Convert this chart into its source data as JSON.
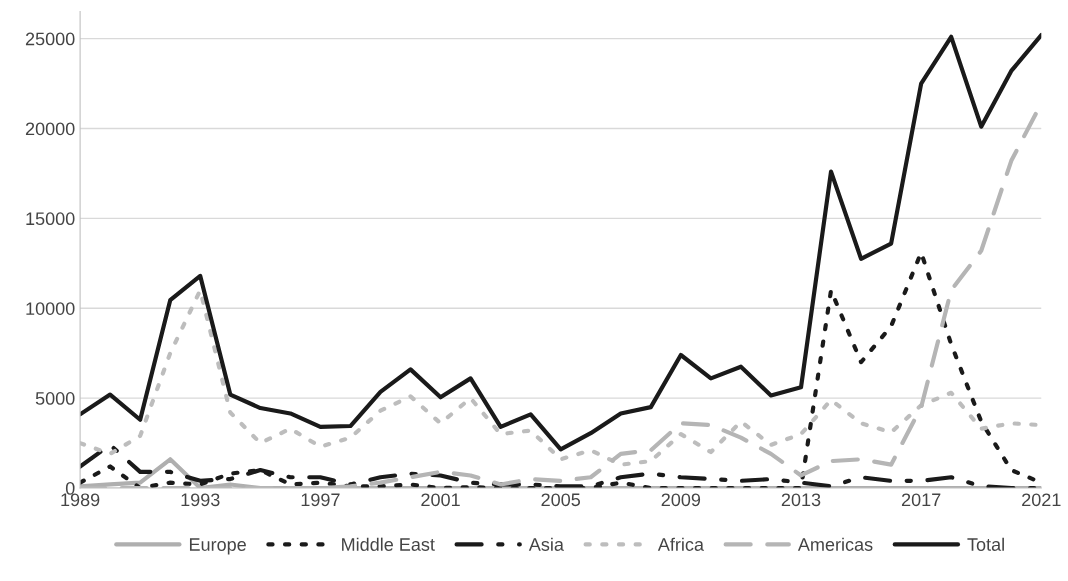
{
  "chart_data": {
    "type": "line",
    "x": [
      1989,
      1990,
      1991,
      1992,
      1993,
      1994,
      1995,
      1996,
      1997,
      1998,
      1999,
      2000,
      2001,
      2002,
      2003,
      2004,
      2005,
      2006,
      2007,
      2008,
      2009,
      2010,
      2011,
      2012,
      2013,
      2014,
      2015,
      2016,
      2017,
      2018,
      2019,
      2020,
      2021
    ],
    "series": [
      {
        "name": "Europe",
        "color": "#afafaf",
        "line_style": "solid",
        "values": [
          100,
          200,
          300,
          1600,
          0,
          200,
          0,
          0,
          0,
          0,
          0,
          0,
          0,
          0,
          0,
          0,
          0,
          0,
          0,
          0,
          0,
          0,
          0,
          0,
          0,
          0,
          0,
          0,
          0,
          0,
          0,
          0,
          0
        ]
      },
      {
        "name": "Middle East",
        "color": "#1a1a1a",
        "line_style": "dotted",
        "values": [
          300,
          1200,
          0,
          300,
          200,
          800,
          1000,
          200,
          300,
          100,
          100,
          200,
          0,
          50,
          0,
          0,
          0,
          0,
          300,
          0,
          0,
          0,
          0,
          0,
          0,
          11000,
          7000,
          9000,
          13100,
          8000,
          3700,
          1000,
          300
        ]
      },
      {
        "name": "Asia",
        "color": "#1a1a1a",
        "line_style": "dashdot",
        "values": [
          1200,
          2400,
          900,
          900,
          400,
          500,
          1000,
          600,
          600,
          200,
          600,
          800,
          700,
          300,
          200,
          200,
          100,
          100,
          600,
          800,
          600,
          500,
          400,
          500,
          300,
          100,
          600,
          400,
          400,
          600,
          100,
          0,
          0
        ]
      },
      {
        "name": "Africa",
        "color": "#bdbdbd",
        "line_style": "dotted",
        "values": [
          2500,
          1900,
          2900,
          7500,
          11000,
          4200,
          2500,
          3300,
          2300,
          2800,
          4300,
          5100,
          3600,
          5000,
          3000,
          3200,
          1600,
          2100,
          1300,
          1500,
          3000,
          2000,
          3700,
          2400,
          3000,
          4900,
          3600,
          3100,
          4600,
          5300,
          3300,
          3600,
          3500
        ]
      },
      {
        "name": "Americas",
        "color": "#b5b5b5",
        "line_style": "dashed",
        "values": [
          0,
          0,
          0,
          0,
          0,
          0,
          0,
          0,
          0,
          100,
          300,
          600,
          900,
          700,
          200,
          500,
          400,
          600,
          1900,
          2100,
          3600,
          3500,
          2800,
          1900,
          700,
          1500,
          1600,
          1300,
          4500,
          11000,
          13200,
          18200,
          21400
        ]
      },
      {
        "name": "Total",
        "color": "#1a1a1a",
        "line_style": "solid",
        "values": [
          4100,
          5200,
          3800,
          10450,
          11800,
          5200,
          4450,
          4150,
          3400,
          3450,
          5350,
          6600,
          5050,
          6100,
          3400,
          4100,
          2150,
          3050,
          4150,
          4500,
          7400,
          6100,
          6750,
          5150,
          5600,
          17600,
          12750,
          13600,
          22500,
          25100,
          20100,
          23200,
          25200
        ]
      }
    ],
    "xlim": [
      1989,
      2021
    ],
    "xticks": [
      1989,
      1993,
      1997,
      2001,
      2005,
      2009,
      2013,
      2017,
      2021
    ],
    "ylim": [
      0,
      26500
    ],
    "yticks": [
      0,
      5000,
      10000,
      15000,
      20000,
      25000
    ],
    "grid": "y",
    "legend": "bottom"
  }
}
